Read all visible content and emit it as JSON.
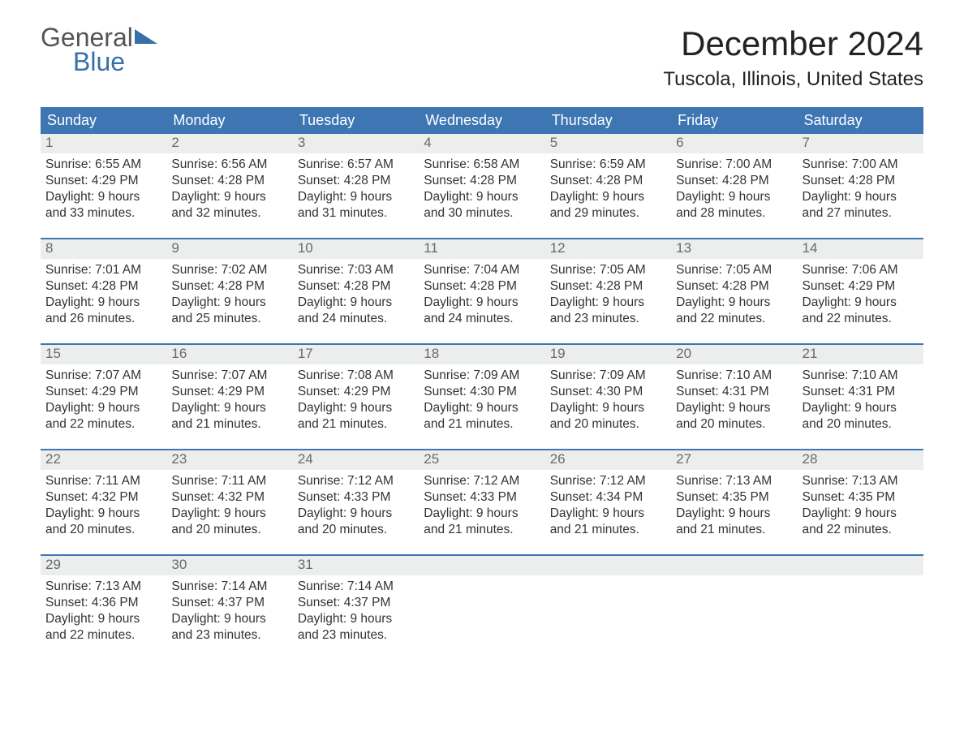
{
  "colors": {
    "header_bg": "#3d76b3",
    "header_text": "#ffffff",
    "row_border": "#3d76b3",
    "daynum_bg": "#eceded",
    "daynum_text": "#6a6a6a",
    "body_text": "#333333",
    "logo_blue": "#3670a8",
    "page_bg": "#ffffff"
  },
  "logo": {
    "line1": "General",
    "line2": "Blue"
  },
  "title": "December 2024",
  "location": "Tuscola, Illinois, United States",
  "weekdays": [
    "Sunday",
    "Monday",
    "Tuesday",
    "Wednesday",
    "Thursday",
    "Friday",
    "Saturday"
  ],
  "weeks": [
    [
      {
        "n": "1",
        "sunrise": "Sunrise: 6:55 AM",
        "sunset": "Sunset: 4:29 PM",
        "dl1": "Daylight: 9 hours",
        "dl2": "and 33 minutes."
      },
      {
        "n": "2",
        "sunrise": "Sunrise: 6:56 AM",
        "sunset": "Sunset: 4:28 PM",
        "dl1": "Daylight: 9 hours",
        "dl2": "and 32 minutes."
      },
      {
        "n": "3",
        "sunrise": "Sunrise: 6:57 AM",
        "sunset": "Sunset: 4:28 PM",
        "dl1": "Daylight: 9 hours",
        "dl2": "and 31 minutes."
      },
      {
        "n": "4",
        "sunrise": "Sunrise: 6:58 AM",
        "sunset": "Sunset: 4:28 PM",
        "dl1": "Daylight: 9 hours",
        "dl2": "and 30 minutes."
      },
      {
        "n": "5",
        "sunrise": "Sunrise: 6:59 AM",
        "sunset": "Sunset: 4:28 PM",
        "dl1": "Daylight: 9 hours",
        "dl2": "and 29 minutes."
      },
      {
        "n": "6",
        "sunrise": "Sunrise: 7:00 AM",
        "sunset": "Sunset: 4:28 PM",
        "dl1": "Daylight: 9 hours",
        "dl2": "and 28 minutes."
      },
      {
        "n": "7",
        "sunrise": "Sunrise: 7:00 AM",
        "sunset": "Sunset: 4:28 PM",
        "dl1": "Daylight: 9 hours",
        "dl2": "and 27 minutes."
      }
    ],
    [
      {
        "n": "8",
        "sunrise": "Sunrise: 7:01 AM",
        "sunset": "Sunset: 4:28 PM",
        "dl1": "Daylight: 9 hours",
        "dl2": "and 26 minutes."
      },
      {
        "n": "9",
        "sunrise": "Sunrise: 7:02 AM",
        "sunset": "Sunset: 4:28 PM",
        "dl1": "Daylight: 9 hours",
        "dl2": "and 25 minutes."
      },
      {
        "n": "10",
        "sunrise": "Sunrise: 7:03 AM",
        "sunset": "Sunset: 4:28 PM",
        "dl1": "Daylight: 9 hours",
        "dl2": "and 24 minutes."
      },
      {
        "n": "11",
        "sunrise": "Sunrise: 7:04 AM",
        "sunset": "Sunset: 4:28 PM",
        "dl1": "Daylight: 9 hours",
        "dl2": "and 24 minutes."
      },
      {
        "n": "12",
        "sunrise": "Sunrise: 7:05 AM",
        "sunset": "Sunset: 4:28 PM",
        "dl1": "Daylight: 9 hours",
        "dl2": "and 23 minutes."
      },
      {
        "n": "13",
        "sunrise": "Sunrise: 7:05 AM",
        "sunset": "Sunset: 4:28 PM",
        "dl1": "Daylight: 9 hours",
        "dl2": "and 22 minutes."
      },
      {
        "n": "14",
        "sunrise": "Sunrise: 7:06 AM",
        "sunset": "Sunset: 4:29 PM",
        "dl1": "Daylight: 9 hours",
        "dl2": "and 22 minutes."
      }
    ],
    [
      {
        "n": "15",
        "sunrise": "Sunrise: 7:07 AM",
        "sunset": "Sunset: 4:29 PM",
        "dl1": "Daylight: 9 hours",
        "dl2": "and 22 minutes."
      },
      {
        "n": "16",
        "sunrise": "Sunrise: 7:07 AM",
        "sunset": "Sunset: 4:29 PM",
        "dl1": "Daylight: 9 hours",
        "dl2": "and 21 minutes."
      },
      {
        "n": "17",
        "sunrise": "Sunrise: 7:08 AM",
        "sunset": "Sunset: 4:29 PM",
        "dl1": "Daylight: 9 hours",
        "dl2": "and 21 minutes."
      },
      {
        "n": "18",
        "sunrise": "Sunrise: 7:09 AM",
        "sunset": "Sunset: 4:30 PM",
        "dl1": "Daylight: 9 hours",
        "dl2": "and 21 minutes."
      },
      {
        "n": "19",
        "sunrise": "Sunrise: 7:09 AM",
        "sunset": "Sunset: 4:30 PM",
        "dl1": "Daylight: 9 hours",
        "dl2": "and 20 minutes."
      },
      {
        "n": "20",
        "sunrise": "Sunrise: 7:10 AM",
        "sunset": "Sunset: 4:31 PM",
        "dl1": "Daylight: 9 hours",
        "dl2": "and 20 minutes."
      },
      {
        "n": "21",
        "sunrise": "Sunrise: 7:10 AM",
        "sunset": "Sunset: 4:31 PM",
        "dl1": "Daylight: 9 hours",
        "dl2": "and 20 minutes."
      }
    ],
    [
      {
        "n": "22",
        "sunrise": "Sunrise: 7:11 AM",
        "sunset": "Sunset: 4:32 PM",
        "dl1": "Daylight: 9 hours",
        "dl2": "and 20 minutes."
      },
      {
        "n": "23",
        "sunrise": "Sunrise: 7:11 AM",
        "sunset": "Sunset: 4:32 PM",
        "dl1": "Daylight: 9 hours",
        "dl2": "and 20 minutes."
      },
      {
        "n": "24",
        "sunrise": "Sunrise: 7:12 AM",
        "sunset": "Sunset: 4:33 PM",
        "dl1": "Daylight: 9 hours",
        "dl2": "and 20 minutes."
      },
      {
        "n": "25",
        "sunrise": "Sunrise: 7:12 AM",
        "sunset": "Sunset: 4:33 PM",
        "dl1": "Daylight: 9 hours",
        "dl2": "and 21 minutes."
      },
      {
        "n": "26",
        "sunrise": "Sunrise: 7:12 AM",
        "sunset": "Sunset: 4:34 PM",
        "dl1": "Daylight: 9 hours",
        "dl2": "and 21 minutes."
      },
      {
        "n": "27",
        "sunrise": "Sunrise: 7:13 AM",
        "sunset": "Sunset: 4:35 PM",
        "dl1": "Daylight: 9 hours",
        "dl2": "and 21 minutes."
      },
      {
        "n": "28",
        "sunrise": "Sunrise: 7:13 AM",
        "sunset": "Sunset: 4:35 PM",
        "dl1": "Daylight: 9 hours",
        "dl2": "and 22 minutes."
      }
    ],
    [
      {
        "n": "29",
        "sunrise": "Sunrise: 7:13 AM",
        "sunset": "Sunset: 4:36 PM",
        "dl1": "Daylight: 9 hours",
        "dl2": "and 22 minutes."
      },
      {
        "n": "30",
        "sunrise": "Sunrise: 7:14 AM",
        "sunset": "Sunset: 4:37 PM",
        "dl1": "Daylight: 9 hours",
        "dl2": "and 23 minutes."
      },
      {
        "n": "31",
        "sunrise": "Sunrise: 7:14 AM",
        "sunset": "Sunset: 4:37 PM",
        "dl1": "Daylight: 9 hours",
        "dl2": "and 23 minutes."
      },
      {
        "n": "",
        "sunrise": "",
        "sunset": "",
        "dl1": "",
        "dl2": ""
      },
      {
        "n": "",
        "sunrise": "",
        "sunset": "",
        "dl1": "",
        "dl2": ""
      },
      {
        "n": "",
        "sunrise": "",
        "sunset": "",
        "dl1": "",
        "dl2": ""
      },
      {
        "n": "",
        "sunrise": "",
        "sunset": "",
        "dl1": "",
        "dl2": ""
      }
    ]
  ]
}
